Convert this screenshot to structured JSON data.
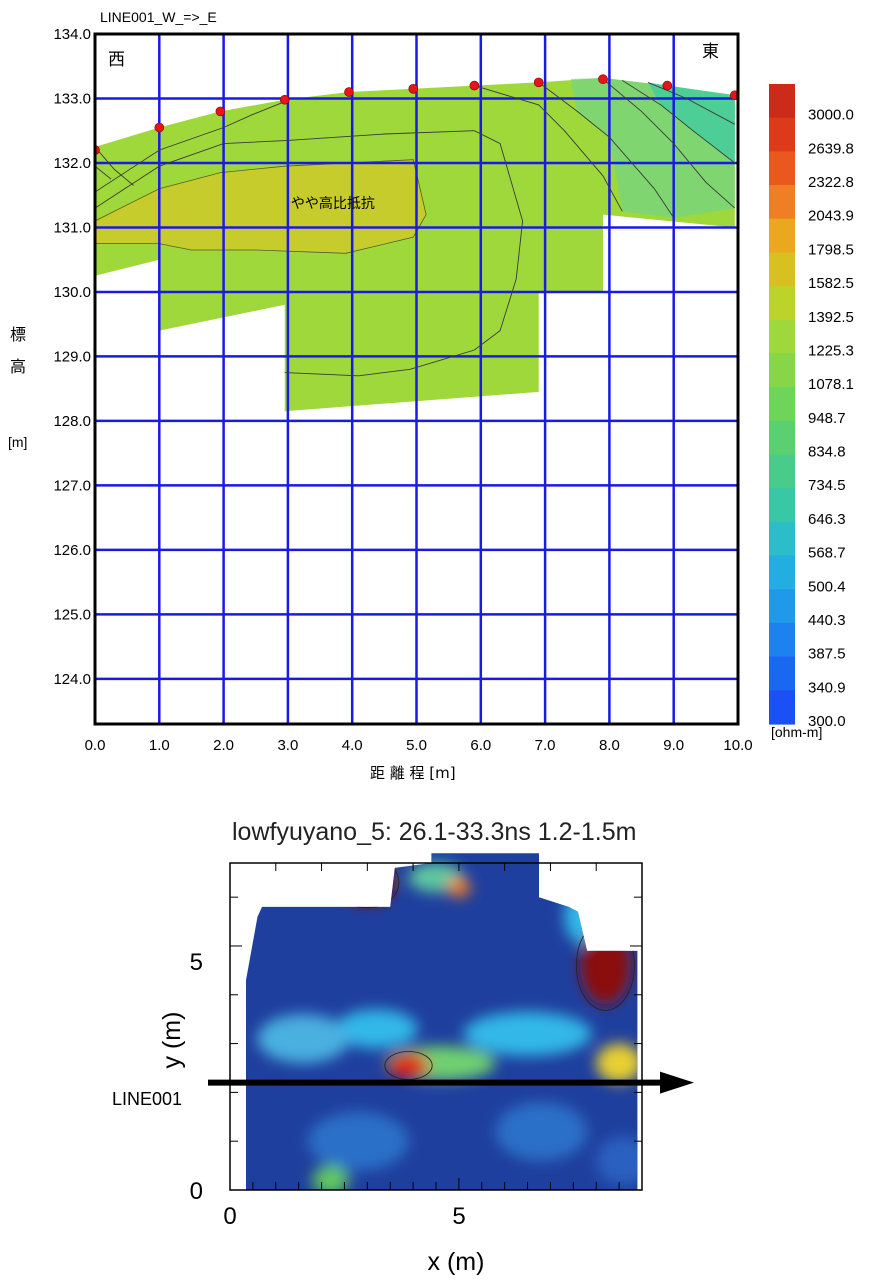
{
  "chart_data": [
    {
      "type": "heatmap",
      "title": "LINE001_W_=>_E",
      "xlabel": "距 離 程 [m]",
      "ylabel_chars": [
        "標",
        "高",
        "[m]"
      ],
      "xlim": [
        0,
        10
      ],
      "ylim": [
        123.3,
        134.0
      ],
      "x_ticks": [
        0,
        1,
        2,
        3,
        4,
        5,
        6,
        7,
        8,
        9,
        10
      ],
      "x_tick_labels": [
        "0.0",
        "1.0",
        "2.0",
        "3.0",
        "4.0",
        "5.0",
        "6.0",
        "7.0",
        "8.0",
        "9.0",
        "10.0"
      ],
      "y_ticks": [
        134,
        133,
        132,
        131,
        130,
        129,
        128,
        127,
        126,
        125,
        124
      ],
      "y_tick_labels": [
        "134.0",
        "133.0",
        "132.0",
        "131.0",
        "130.0",
        "129.0",
        "128.0",
        "127.0",
        "126.0",
        "125.0",
        "124.0"
      ],
      "grid": true,
      "direction_labels": {
        "west": "西",
        "east": "東"
      },
      "annotation": {
        "text": "やや高比抵抗",
        "x": 3.7,
        "y": 131.3
      },
      "electrodes": [
        {
          "x": 0.0,
          "y": 132.2
        },
        {
          "x": 1.0,
          "y": 132.55
        },
        {
          "x": 1.95,
          "y": 132.8
        },
        {
          "x": 2.95,
          "y": 132.98
        },
        {
          "x": 3.95,
          "y": 133.1
        },
        {
          "x": 4.95,
          "y": 133.15
        },
        {
          "x": 5.9,
          "y": 133.2
        },
        {
          "x": 6.9,
          "y": 133.25
        },
        {
          "x": 7.9,
          "y": 133.3
        },
        {
          "x": 8.9,
          "y": 133.2
        },
        {
          "x": 9.95,
          "y": 133.05
        }
      ],
      "section_outline": [
        [
          0.0,
          132.25
        ],
        [
          1.0,
          132.55
        ],
        [
          1.95,
          132.8
        ],
        [
          2.95,
          132.98
        ],
        [
          3.95,
          133.1
        ],
        [
          4.95,
          133.15
        ],
        [
          5.9,
          133.2
        ],
        [
          6.9,
          133.25
        ],
        [
          7.9,
          133.32
        ],
        [
          8.9,
          133.2
        ],
        [
          9.95,
          133.05
        ],
        [
          9.95,
          131.0
        ],
        [
          7.9,
          131.2
        ],
        [
          7.9,
          130.0
        ],
        [
          6.9,
          130.0
        ],
        [
          6.9,
          128.45
        ],
        [
          2.95,
          128.15
        ],
        [
          2.95,
          129.8
        ],
        [
          1.0,
          129.4
        ],
        [
          1.0,
          130.5
        ],
        [
          0.0,
          130.25
        ]
      ],
      "high_zone_outline": [
        [
          0.0,
          131.1
        ],
        [
          1.0,
          131.6
        ],
        [
          1.95,
          131.85
        ],
        [
          2.95,
          131.95
        ],
        [
          4.95,
          132.05
        ],
        [
          5.15,
          131.2
        ],
        [
          4.95,
          130.85
        ],
        [
          3.9,
          130.6
        ],
        [
          2.5,
          130.65
        ],
        [
          1.5,
          130.65
        ],
        [
          1.0,
          130.75
        ],
        [
          0.0,
          130.75
        ]
      ],
      "contour_lines": [
        [
          [
            0.0,
            131.55
          ],
          [
            1.0,
            132.2
          ],
          [
            2.0,
            132.55
          ],
          [
            2.45,
            132.75
          ],
          [
            2.95,
            132.95
          ]
        ],
        [
          [
            0.0,
            131.3
          ],
          [
            1.0,
            131.95
          ],
          [
            2.0,
            132.3
          ],
          [
            3.0,
            132.35
          ],
          [
            4.5,
            132.45
          ],
          [
            5.9,
            132.5
          ],
          [
            6.3,
            132.3
          ],
          [
            6.65,
            131.1
          ],
          [
            6.55,
            130.2
          ],
          [
            6.3,
            129.4
          ],
          [
            5.9,
            129.1
          ],
          [
            4.9,
            128.8
          ],
          [
            4.1,
            128.7
          ],
          [
            2.95,
            128.75
          ]
        ],
        [
          [
            5.9,
            133.2
          ],
          [
            6.9,
            132.9
          ],
          [
            7.3,
            132.5
          ],
          [
            7.9,
            131.8
          ],
          [
            8.2,
            131.25
          ]
        ],
        [
          [
            6.9,
            133.25
          ],
          [
            7.5,
            132.8
          ],
          [
            8.0,
            132.4
          ],
          [
            8.7,
            131.6
          ],
          [
            9.0,
            131.15
          ]
        ],
        [
          [
            7.9,
            133.3
          ],
          [
            8.5,
            132.8
          ],
          [
            9.0,
            132.3
          ],
          [
            9.5,
            131.7
          ],
          [
            9.95,
            131.3
          ]
        ],
        [
          [
            8.2,
            133.28
          ],
          [
            8.8,
            132.9
          ],
          [
            9.3,
            132.5
          ],
          [
            9.95,
            132.0
          ]
        ],
        [
          [
            8.6,
            133.25
          ],
          [
            9.2,
            133.0
          ],
          [
            9.95,
            132.6
          ]
        ],
        [
          [
            0.0,
            132.25
          ],
          [
            0.3,
            131.9
          ],
          [
            0.6,
            131.65
          ]
        ],
        [
          [
            0.0,
            131.95
          ],
          [
            0.25,
            131.75
          ]
        ]
      ],
      "colorbar": {
        "unit": "[ohm-m]",
        "levels": [
          "3000.0",
          "2639.8",
          "2322.8",
          "2043.9",
          "1798.5",
          "1582.5",
          "1392.5",
          "1225.3",
          "1078.1",
          "948.7",
          "834.8",
          "734.5",
          "646.3",
          "568.7",
          "500.4",
          "440.3",
          "387.5",
          "340.9",
          "300.0"
        ],
        "colors": [
          "#cc2a1a",
          "#dd3a1c",
          "#ea581f",
          "#ef7f22",
          "#e9a81e",
          "#d8c020",
          "#bcd42a",
          "#9ed83a",
          "#86d648",
          "#6fd45a",
          "#5ad070",
          "#48cc8a",
          "#38c8a6",
          "#2cbec8",
          "#22aee0",
          "#1f9aea",
          "#1d82f0",
          "#1a68f2",
          "#1a50f4"
        ],
        "section_main_color": "#9ed83a",
        "section_high_color": "#c6cc2c"
      }
    },
    {
      "type": "heatmap",
      "title": "lowfyuyano_5:  26.1-33.3ns  1.2-1.5m",
      "xlabel": "x (m)",
      "ylabel": "y (m)",
      "xlim": [
        0,
        9
      ],
      "ylim": [
        0,
        6.7
      ],
      "x_tick_labels": [
        {
          "value": 0,
          "label": "0"
        },
        {
          "value": 5,
          "label": "5"
        }
      ],
      "y_tick_labels": [
        {
          "value": 0,
          "label": "0"
        },
        {
          "value": 5,
          "label": "5"
        }
      ],
      "line_label": "LINE001",
      "line_y": 2.2,
      "blobs": [
        {
          "x": 3.0,
          "y": 6.3,
          "rx": 0.6,
          "ry": 0.45,
          "color": "#8b1010"
        },
        {
          "x": 8.2,
          "y": 4.6,
          "rx": 0.55,
          "ry": 0.8,
          "color": "#8b1010"
        },
        {
          "x": 3.9,
          "y": 2.55,
          "rx": 0.45,
          "ry": 0.25,
          "color": "#e02018"
        },
        {
          "x": 5.0,
          "y": 6.2,
          "rx": 0.25,
          "ry": 0.2,
          "color": "#f07a20"
        },
        {
          "x": 8.5,
          "y": 2.6,
          "rx": 0.5,
          "ry": 0.4,
          "color": "#e8d030"
        },
        {
          "x": 3.2,
          "y": 3.3,
          "rx": 0.9,
          "ry": 0.4,
          "color": "#30b8e8"
        },
        {
          "x": 6.5,
          "y": 3.2,
          "rx": 1.4,
          "ry": 0.45,
          "color": "#30b8e8"
        },
        {
          "x": 1.6,
          "y": 3.1,
          "rx": 1.0,
          "ry": 0.5,
          "color": "#4ab0e0"
        },
        {
          "x": 4.6,
          "y": 2.6,
          "rx": 1.2,
          "ry": 0.35,
          "color": "#70d070"
        },
        {
          "x": 7.8,
          "y": 5.6,
          "rx": 0.5,
          "ry": 0.6,
          "color": "#30b8e8"
        },
        {
          "x": 4.5,
          "y": 6.4,
          "rx": 0.6,
          "ry": 0.3,
          "color": "#60c8a0"
        },
        {
          "x": 2.8,
          "y": 1.0,
          "rx": 1.1,
          "ry": 0.6,
          "color": "#2a70c8"
        },
        {
          "x": 6.8,
          "y": 1.2,
          "rx": 1.0,
          "ry": 0.6,
          "color": "#2a70c8"
        },
        {
          "x": 8.6,
          "y": 0.6,
          "rx": 0.6,
          "ry": 0.5,
          "color": "#2a60c0"
        },
        {
          "x": 2.2,
          "y": 0.2,
          "rx": 0.4,
          "ry": 0.3,
          "color": "#60c860"
        }
      ]
    }
  ]
}
